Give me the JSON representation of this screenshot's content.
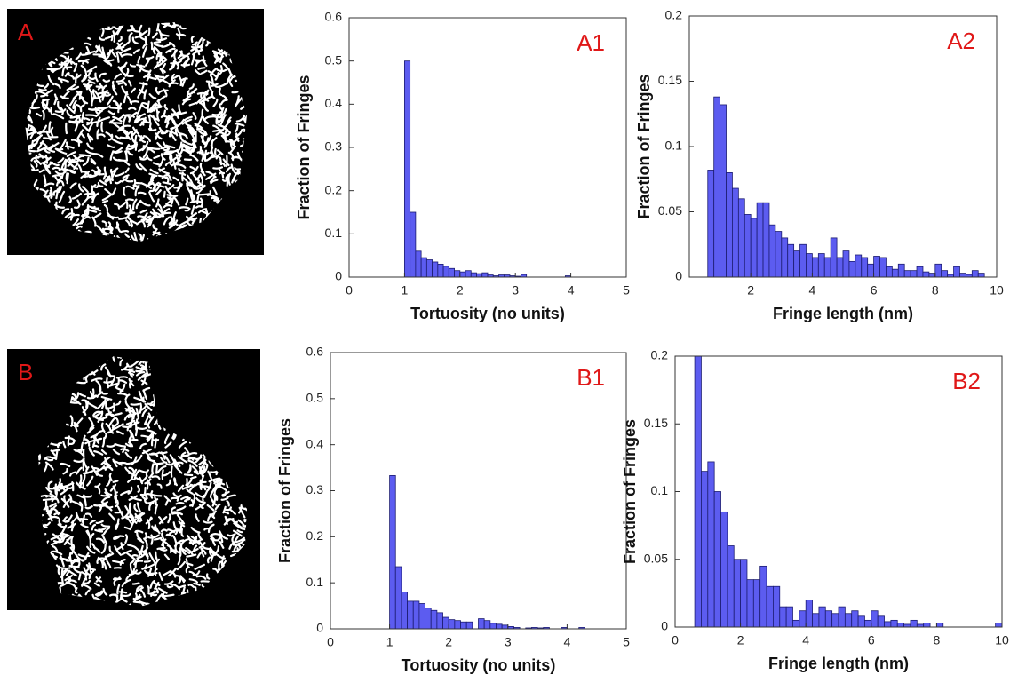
{
  "images": [
    {
      "label": "A"
    },
    {
      "label": "B"
    }
  ],
  "chart_data": [
    {
      "type": "histogram",
      "annotation": "A1",
      "xlabel": "Tortuosity (no units)",
      "ylabel": "Fraction of Fringes",
      "color": "#5c5cf0",
      "xlim": [
        0,
        5
      ],
      "ylim": [
        0,
        0.6
      ],
      "xticks": [
        0,
        1,
        2,
        3,
        4,
        5
      ],
      "yticks": [
        0,
        0.1,
        0.2,
        0.3,
        0.4,
        0.5,
        0.6
      ],
      "bins": [
        1.0,
        1.1,
        1.2,
        1.3,
        1.4,
        1.5,
        1.6,
        1.7,
        1.8,
        1.9,
        2.0,
        2.1,
        2.2,
        2.3,
        2.4,
        2.5,
        2.6,
        2.7,
        2.8,
        2.9,
        3.0,
        3.1,
        3.2,
        3.3,
        3.4,
        3.5,
        3.6,
        3.7,
        3.8,
        3.9,
        4.0
      ],
      "values": [
        0.5,
        0.15,
        0.06,
        0.045,
        0.04,
        0.035,
        0.03,
        0.025,
        0.02,
        0.015,
        0.012,
        0.015,
        0.01,
        0.008,
        0.01,
        0.005,
        0.003,
        0.005,
        0.005,
        0.003,
        0.002,
        0.006,
        0,
        0,
        0,
        0,
        0,
        0,
        0,
        0.003
      ]
    },
    {
      "type": "histogram",
      "annotation": "A2",
      "xlabel": "Fringe length (nm)",
      "ylabel": "Fraction of Fringes",
      "color": "#5c5cf0",
      "xlim": [
        0,
        10
      ],
      "ylim": [
        0,
        0.2
      ],
      "xticks": [
        2,
        4,
        6,
        8,
        10
      ],
      "yticks": [
        0,
        0.05,
        0.1,
        0.15,
        0.2
      ],
      "bins": [
        0.6,
        0.8,
        1.0,
        1.2,
        1.4,
        1.6,
        1.8,
        2.0,
        2.2,
        2.4,
        2.6,
        2.8,
        3.0,
        3.2,
        3.4,
        3.6,
        3.8,
        4.0,
        4.2,
        4.4,
        4.6,
        4.8,
        5.0,
        5.2,
        5.4,
        5.6,
        5.8,
        6.0,
        6.2,
        6.4,
        6.6,
        6.8,
        7.0,
        7.2,
        7.4,
        7.6,
        7.8,
        8.0,
        8.2,
        8.4,
        8.6,
        8.8,
        9.0,
        9.2,
        9.4,
        9.6
      ],
      "values": [
        0.082,
        0.138,
        0.132,
        0.08,
        0.068,
        0.06,
        0.048,
        0.045,
        0.057,
        0.057,
        0.04,
        0.035,
        0.03,
        0.025,
        0.02,
        0.025,
        0.018,
        0.015,
        0.018,
        0.015,
        0.03,
        0.015,
        0.02,
        0.012,
        0.017,
        0.015,
        0.01,
        0.016,
        0.015,
        0.008,
        0.006,
        0.01,
        0.005,
        0.005,
        0.008,
        0.004,
        0.003,
        0.01,
        0.005,
        0.002,
        0.008,
        0.003,
        0.002,
        0.005,
        0.003
      ]
    },
    {
      "type": "histogram",
      "annotation": "B1",
      "xlabel": "Tortuosity (no units)",
      "ylabel": "Fraction of Fringes",
      "color": "#5c5cf0",
      "xlim": [
        0,
        5
      ],
      "ylim": [
        0,
        0.6
      ],
      "xticks": [
        0,
        1,
        2,
        3,
        4,
        5
      ],
      "yticks": [
        0,
        0.1,
        0.2,
        0.3,
        0.4,
        0.5,
        0.6
      ],
      "bins": [
        1.0,
        1.1,
        1.2,
        1.3,
        1.4,
        1.5,
        1.6,
        1.7,
        1.8,
        1.9,
        2.0,
        2.1,
        2.2,
        2.3,
        2.4,
        2.5,
        2.6,
        2.7,
        2.8,
        2.9,
        3.0,
        3.1,
        3.2,
        3.3,
        3.4,
        3.5,
        3.6,
        3.7,
        3.8,
        3.9,
        4.0,
        4.1,
        4.2,
        4.3
      ],
      "values": [
        0.333,
        0.135,
        0.08,
        0.06,
        0.06,
        0.055,
        0.045,
        0.04,
        0.035,
        0.025,
        0.02,
        0.018,
        0.015,
        0.015,
        0,
        0.022,
        0.018,
        0.012,
        0.01,
        0.008,
        0.005,
        0.003,
        0,
        0.002,
        0.003,
        0.002,
        0.003,
        0,
        0,
        0.003,
        0,
        0,
        0.003
      ]
    },
    {
      "type": "histogram",
      "annotation": "B2",
      "xlabel": "Fringe length (nm)",
      "ylabel": "Fraction of Fringes",
      "color": "#5c5cf0",
      "xlim": [
        0,
        10
      ],
      "ylim": [
        0,
        0.2
      ],
      "xticks": [
        0,
        2,
        4,
        6,
        8,
        10
      ],
      "yticks": [
        0,
        0.05,
        0.1,
        0.15,
        0.2
      ],
      "bins": [
        0.6,
        0.8,
        1.0,
        1.2,
        1.4,
        1.6,
        1.8,
        2.0,
        2.2,
        2.4,
        2.6,
        2.8,
        3.0,
        3.2,
        3.4,
        3.6,
        3.8,
        4.0,
        4.2,
        4.4,
        4.6,
        4.8,
        5.0,
        5.2,
        5.4,
        5.6,
        5.8,
        6.0,
        6.2,
        6.4,
        6.6,
        6.8,
        7.0,
        7.2,
        7.4,
        7.6,
        7.8,
        8.0,
        8.2,
        8.4,
        8.6,
        8.8,
        9.0,
        9.2,
        9.4,
        9.6,
        9.8,
        10.0
      ],
      "values": [
        0.2,
        0.115,
        0.122,
        0.1,
        0.085,
        0.06,
        0.05,
        0.05,
        0.035,
        0.035,
        0.045,
        0.03,
        0.03,
        0.015,
        0.015,
        0.005,
        0.012,
        0.02,
        0.01,
        0.015,
        0.012,
        0.01,
        0.015,
        0.01,
        0.012,
        0.008,
        0.005,
        0.012,
        0.008,
        0.004,
        0.005,
        0.003,
        0.002,
        0.005,
        0.002,
        0.003,
        0,
        0.003,
        0,
        0,
        0,
        0,
        0,
        0,
        0,
        0,
        0.003
      ]
    }
  ]
}
